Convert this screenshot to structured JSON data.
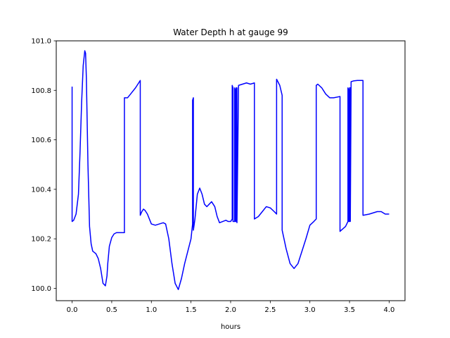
{
  "chart_data": {
    "type": "line",
    "title": "Water Depth h at gauge 99",
    "xlabel": "hours",
    "ylabel": "",
    "xlim": [
      -0.2,
      4.2
    ],
    "ylim": [
      99.95,
      101.0
    ],
    "xticks": [
      0.0,
      0.5,
      1.0,
      1.5,
      2.0,
      2.5,
      3.0,
      3.5,
      4.0
    ],
    "xtick_labels": [
      "0.0",
      "0.5",
      "1.0",
      "1.5",
      "2.0",
      "2.5",
      "3.0",
      "3.5",
      "4.0"
    ],
    "yticks": [
      100.0,
      100.2,
      100.4,
      100.6,
      100.8,
      101.0
    ],
    "ytick_labels": [
      "100.0",
      "100.2",
      "100.4",
      "100.6",
      "100.8",
      "101.0"
    ],
    "grid": false,
    "series": [
      {
        "color": "#0000ff",
        "x": [
          0.0,
          0.0,
          0.02,
          0.05,
          0.08,
          0.1,
          0.12,
          0.14,
          0.16,
          0.17,
          0.18,
          0.2,
          0.22,
          0.24,
          0.26,
          0.28,
          0.3,
          0.33,
          0.36,
          0.39,
          0.42,
          0.44,
          0.45,
          0.47,
          0.5,
          0.53,
          0.56,
          0.6,
          0.62,
          0.66,
          0.66,
          0.7,
          0.75,
          0.8,
          0.86,
          0.86,
          0.88,
          0.9,
          0.92,
          0.95,
          1.0,
          1.05,
          1.1,
          1.15,
          1.18,
          1.22,
          1.26,
          1.3,
          1.34,
          1.38,
          1.42,
          1.46,
          1.5,
          1.52,
          1.52,
          1.53,
          1.53,
          1.55,
          1.58,
          1.61,
          1.64,
          1.67,
          1.7,
          1.73,
          1.76,
          1.8,
          1.83,
          1.86,
          1.9,
          1.94,
          1.97,
          2.0,
          2.02,
          2.02,
          2.03,
          2.03,
          2.05,
          2.05,
          2.06,
          2.06,
          2.07,
          2.07,
          2.08,
          2.08,
          2.1,
          2.15,
          2.2,
          2.25,
          2.3,
          2.3,
          2.35,
          2.4,
          2.45,
          2.5,
          2.55,
          2.58,
          2.58,
          2.62,
          2.65,
          2.65,
          2.7,
          2.75,
          2.8,
          2.85,
          2.9,
          2.95,
          3.0,
          3.05,
          3.08,
          3.08,
          3.1,
          3.15,
          3.2,
          3.25,
          3.3,
          3.38,
          3.38,
          3.45,
          3.48,
          3.48,
          3.49,
          3.49,
          3.5,
          3.5,
          3.51,
          3.51,
          3.52,
          3.55,
          3.6,
          3.65,
          3.67,
          3.67,
          3.75,
          3.85,
          3.9,
          3.95,
          4.0
        ],
        "y": [
          100.815,
          100.27,
          100.275,
          100.3,
          100.38,
          100.55,
          100.75,
          100.9,
          100.96,
          100.95,
          100.85,
          100.5,
          100.25,
          100.18,
          100.15,
          100.145,
          100.14,
          100.12,
          100.08,
          100.02,
          100.01,
          100.05,
          100.1,
          100.17,
          100.205,
          100.22,
          100.225,
          100.225,
          100.225,
          100.225,
          100.77,
          100.77,
          100.79,
          100.81,
          100.84,
          100.295,
          100.31,
          100.32,
          100.315,
          100.3,
          100.26,
          100.255,
          100.26,
          100.265,
          100.26,
          100.2,
          100.1,
          100.02,
          99.995,
          100.04,
          100.1,
          100.15,
          100.2,
          100.26,
          100.76,
          100.77,
          100.235,
          100.28,
          100.38,
          100.405,
          100.38,
          100.34,
          100.33,
          100.34,
          100.35,
          100.33,
          100.29,
          100.265,
          100.27,
          100.275,
          100.27,
          100.27,
          100.28,
          100.82,
          100.81,
          100.27,
          100.27,
          100.81,
          100.8,
          100.27,
          100.27,
          100.81,
          100.81,
          100.265,
          100.82,
          100.825,
          100.83,
          100.825,
          100.83,
          100.28,
          100.29,
          100.31,
          100.33,
          100.325,
          100.31,
          100.3,
          100.845,
          100.82,
          100.78,
          100.235,
          100.16,
          100.1,
          100.08,
          100.1,
          100.15,
          100.2,
          100.255,
          100.27,
          100.28,
          100.82,
          100.825,
          100.81,
          100.785,
          100.77,
          100.77,
          100.775,
          100.23,
          100.25,
          100.27,
          100.81,
          100.8,
          100.27,
          100.27,
          100.81,
          100.81,
          100.27,
          100.835,
          100.838,
          100.84,
          100.84,
          100.84,
          100.295,
          100.3,
          100.31,
          100.31,
          100.3,
          100.3
        ]
      }
    ]
  }
}
